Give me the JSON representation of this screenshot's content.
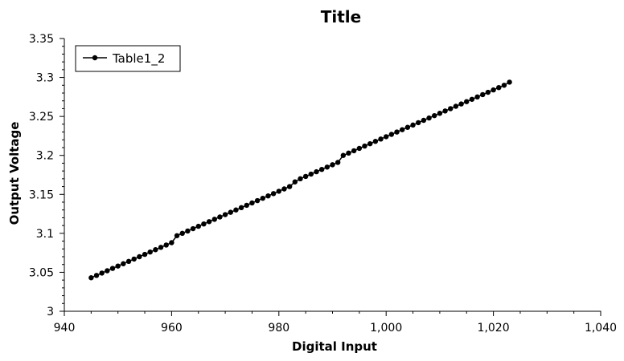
{
  "chart_data": {
    "type": "line",
    "title": "Title",
    "xlabel": "Digital Input",
    "ylabel": "Output Voltage",
    "xlim": [
      940,
      1040
    ],
    "ylim": [
      3.0,
      3.35
    ],
    "x_ticks": [
      "940",
      "960",
      "980",
      "1,000",
      "1,020",
      "1,040"
    ],
    "y_ticks": [
      "3",
      "3.05",
      "3.1",
      "3.15",
      "3.2",
      "3.25",
      "3.3",
      "3.35"
    ],
    "grid": false,
    "legend_position": "top-left",
    "series": [
      {
        "name": "Table1_2",
        "color": "#000000",
        "x_start": 945,
        "x_end": 1023,
        "x_step": 1,
        "values": [
          3.043,
          3.046,
          3.049,
          3.052,
          3.055,
          3.058,
          3.061,
          3.064,
          3.067,
          3.07,
          3.073,
          3.076,
          3.079,
          3.082,
          3.085,
          3.088,
          3.097,
          3.1,
          3.103,
          3.106,
          3.109,
          3.112,
          3.115,
          3.118,
          3.121,
          3.124,
          3.127,
          3.13,
          3.133,
          3.136,
          3.139,
          3.142,
          3.145,
          3.148,
          3.151,
          3.154,
          3.157,
          3.16,
          3.166,
          3.17,
          3.173,
          3.176,
          3.179,
          3.182,
          3.185,
          3.188,
          3.191,
          3.2,
          3.203,
          3.206,
          3.209,
          3.212,
          3.215,
          3.218,
          3.221,
          3.224,
          3.227,
          3.23,
          3.233,
          3.236,
          3.239,
          3.242,
          3.245,
          3.248,
          3.251,
          3.254,
          3.257,
          3.26,
          3.263,
          3.266,
          3.269,
          3.272,
          3.275,
          3.278,
          3.281,
          3.284,
          3.287,
          3.29,
          3.294
        ]
      }
    ]
  }
}
